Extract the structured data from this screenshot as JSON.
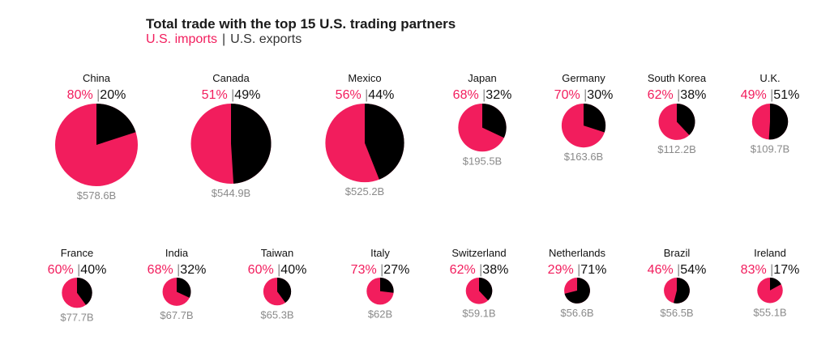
{
  "chart_data": {
    "type": "pie",
    "title": "Total trade with the top 15 U.S. trading partners",
    "legend": [
      {
        "label": "U.S. imports",
        "color": "#f21d5d"
      },
      {
        "label": "U.S. exports",
        "color": "#000000"
      }
    ],
    "separator": "|",
    "partners": [
      {
        "name": "China",
        "imports": 80,
        "exports": 20,
        "total": "$578.6B",
        "value": 578.6
      },
      {
        "name": "Canada",
        "imports": 51,
        "exports": 49,
        "total": "$544.9B",
        "value": 544.9
      },
      {
        "name": "Mexico",
        "imports": 56,
        "exports": 44,
        "total": "$525.2B",
        "value": 525.2
      },
      {
        "name": "Japan",
        "imports": 68,
        "exports": 32,
        "total": "$195.5B",
        "value": 195.5
      },
      {
        "name": "Germany",
        "imports": 70,
        "exports": 30,
        "total": "$163.6B",
        "value": 163.6
      },
      {
        "name": "South Korea",
        "imports": 62,
        "exports": 38,
        "total": "$112.2B",
        "value": 112.2
      },
      {
        "name": "U.K.",
        "imports": 49,
        "exports": 51,
        "total": "$109.7B",
        "value": 109.7
      },
      {
        "name": "France",
        "imports": 60,
        "exports": 40,
        "total": "$77.7B",
        "value": 77.7
      },
      {
        "name": "India",
        "imports": 68,
        "exports": 32,
        "total": "$67.7B",
        "value": 67.7
      },
      {
        "name": "Taiwan",
        "imports": 60,
        "exports": 40,
        "total": "$65.3B",
        "value": 65.3
      },
      {
        "name": "Italy",
        "imports": 73,
        "exports": 27,
        "total": "$62B",
        "value": 62
      },
      {
        "name": "Switzerland",
        "imports": 62,
        "exports": 38,
        "total": "$59.1B",
        "value": 59.1
      },
      {
        "name": "Netherlands",
        "imports": 29,
        "exports": 71,
        "total": "$56.6B",
        "value": 56.6
      },
      {
        "name": "Brazil",
        "imports": 46,
        "exports": 54,
        "total": "$56.5B",
        "value": 56.5
      },
      {
        "name": "Ireland",
        "imports": 83,
        "exports": 17,
        "total": "$55.1B",
        "value": 55.1
      }
    ]
  }
}
